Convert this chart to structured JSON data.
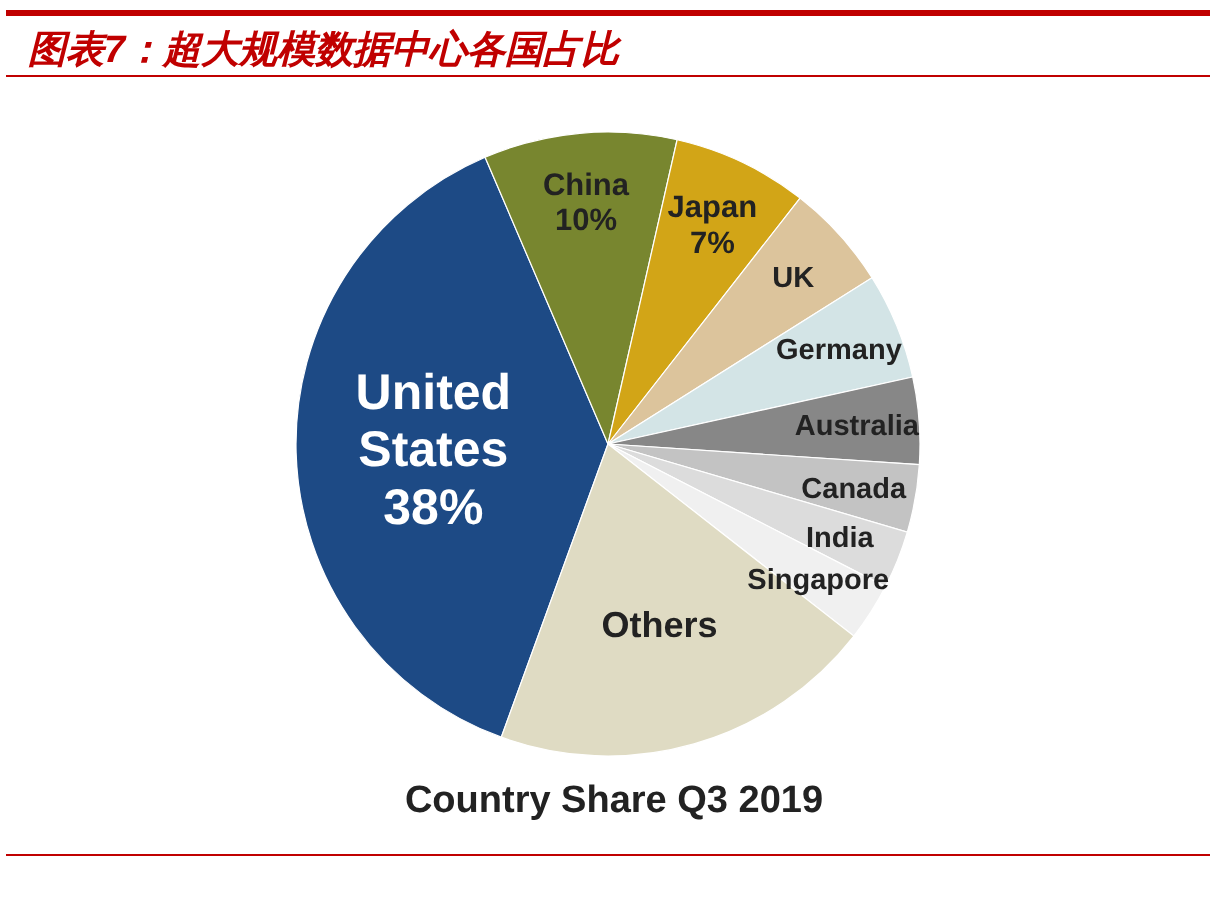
{
  "chart_data": {
    "type": "pie",
    "title": "图表7：超大规模数据中心各国占比",
    "subtitle": "Country Share Q3 2019",
    "categories": [
      "United States",
      "China",
      "Japan",
      "UK",
      "Germany",
      "Australia",
      "Canada",
      "India",
      "Singapore",
      "Others"
    ],
    "values": [
      38,
      10,
      7,
      5.5,
      5.5,
      4.5,
      3.5,
      3,
      3,
      20
    ],
    "colors": [
      "#1d4a85",
      "#78862f",
      "#d2a517",
      "#dcc49c",
      "#d3e4e6",
      "#878787",
      "#c3c3c3",
      "#dcdcdc",
      "#f0f0f0",
      "#dfdbc3"
    ],
    "value_labels": [
      "38%",
      "10%",
      "7%",
      null,
      null,
      null,
      null,
      null,
      null,
      null
    ]
  }
}
